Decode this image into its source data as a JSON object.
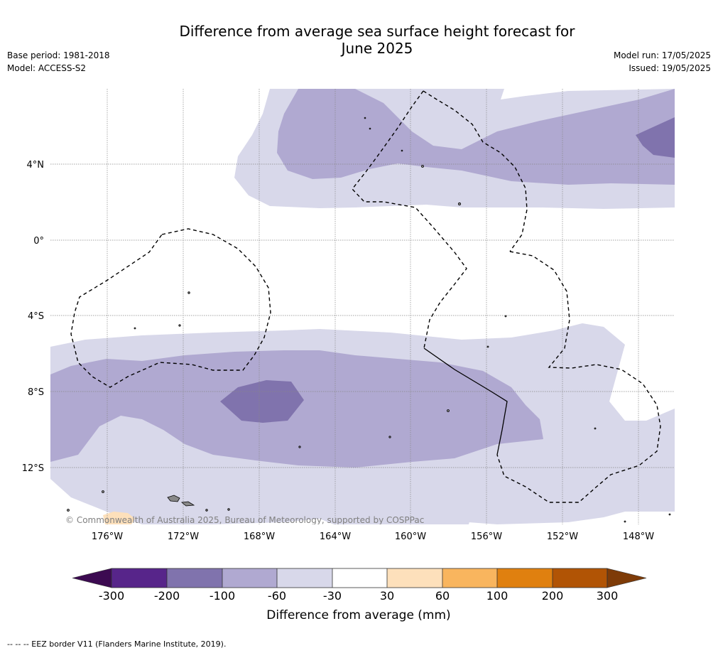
{
  "title_line1": "Difference from average sea surface height forecast for",
  "title_line2": "June 2025",
  "meta": {
    "base_period": "Base period: 1981-2018",
    "model": "Model: ACCESS-S2",
    "model_run": "Model run: 17/05/2025",
    "issued": "Issued: 19/05/2025"
  },
  "map": {
    "lat_labels": [
      "4°N",
      "0°",
      "4°S",
      "8°S",
      "12°S"
    ],
    "lon_labels": [
      "176°W",
      "172°W",
      "168°W",
      "164°W",
      "160°W",
      "156°W",
      "152°W",
      "148°W"
    ],
    "credit": "© Commonwealth of Australia 2025, Bureau of Meteorology, supported by COSPPac",
    "colors": {
      "lt_neg_30_60": "#d8d8ea",
      "lt_neg_60_100": "#b0a9d1",
      "lt_neg_100_200": "#8073ad",
      "pos_30_60": "#fde0bb"
    }
  },
  "colorbar": {
    "ticks": [
      "-300",
      "-200",
      "-100",
      "-60",
      "-30",
      "30",
      "60",
      "100",
      "200",
      "300"
    ],
    "colors": [
      "#3c0a51",
      "#57258a",
      "#8073ad",
      "#b0a9d1",
      "#d8d8ea",
      "#ffffff",
      "#fde0bb",
      "#f9b55e",
      "#e0800f",
      "#b15405",
      "#7e3b08"
    ],
    "label": "Difference from average (mm)"
  },
  "footnote": "--  --  -- EEZ border V11 (Flanders Marine Institute, 2019)."
}
